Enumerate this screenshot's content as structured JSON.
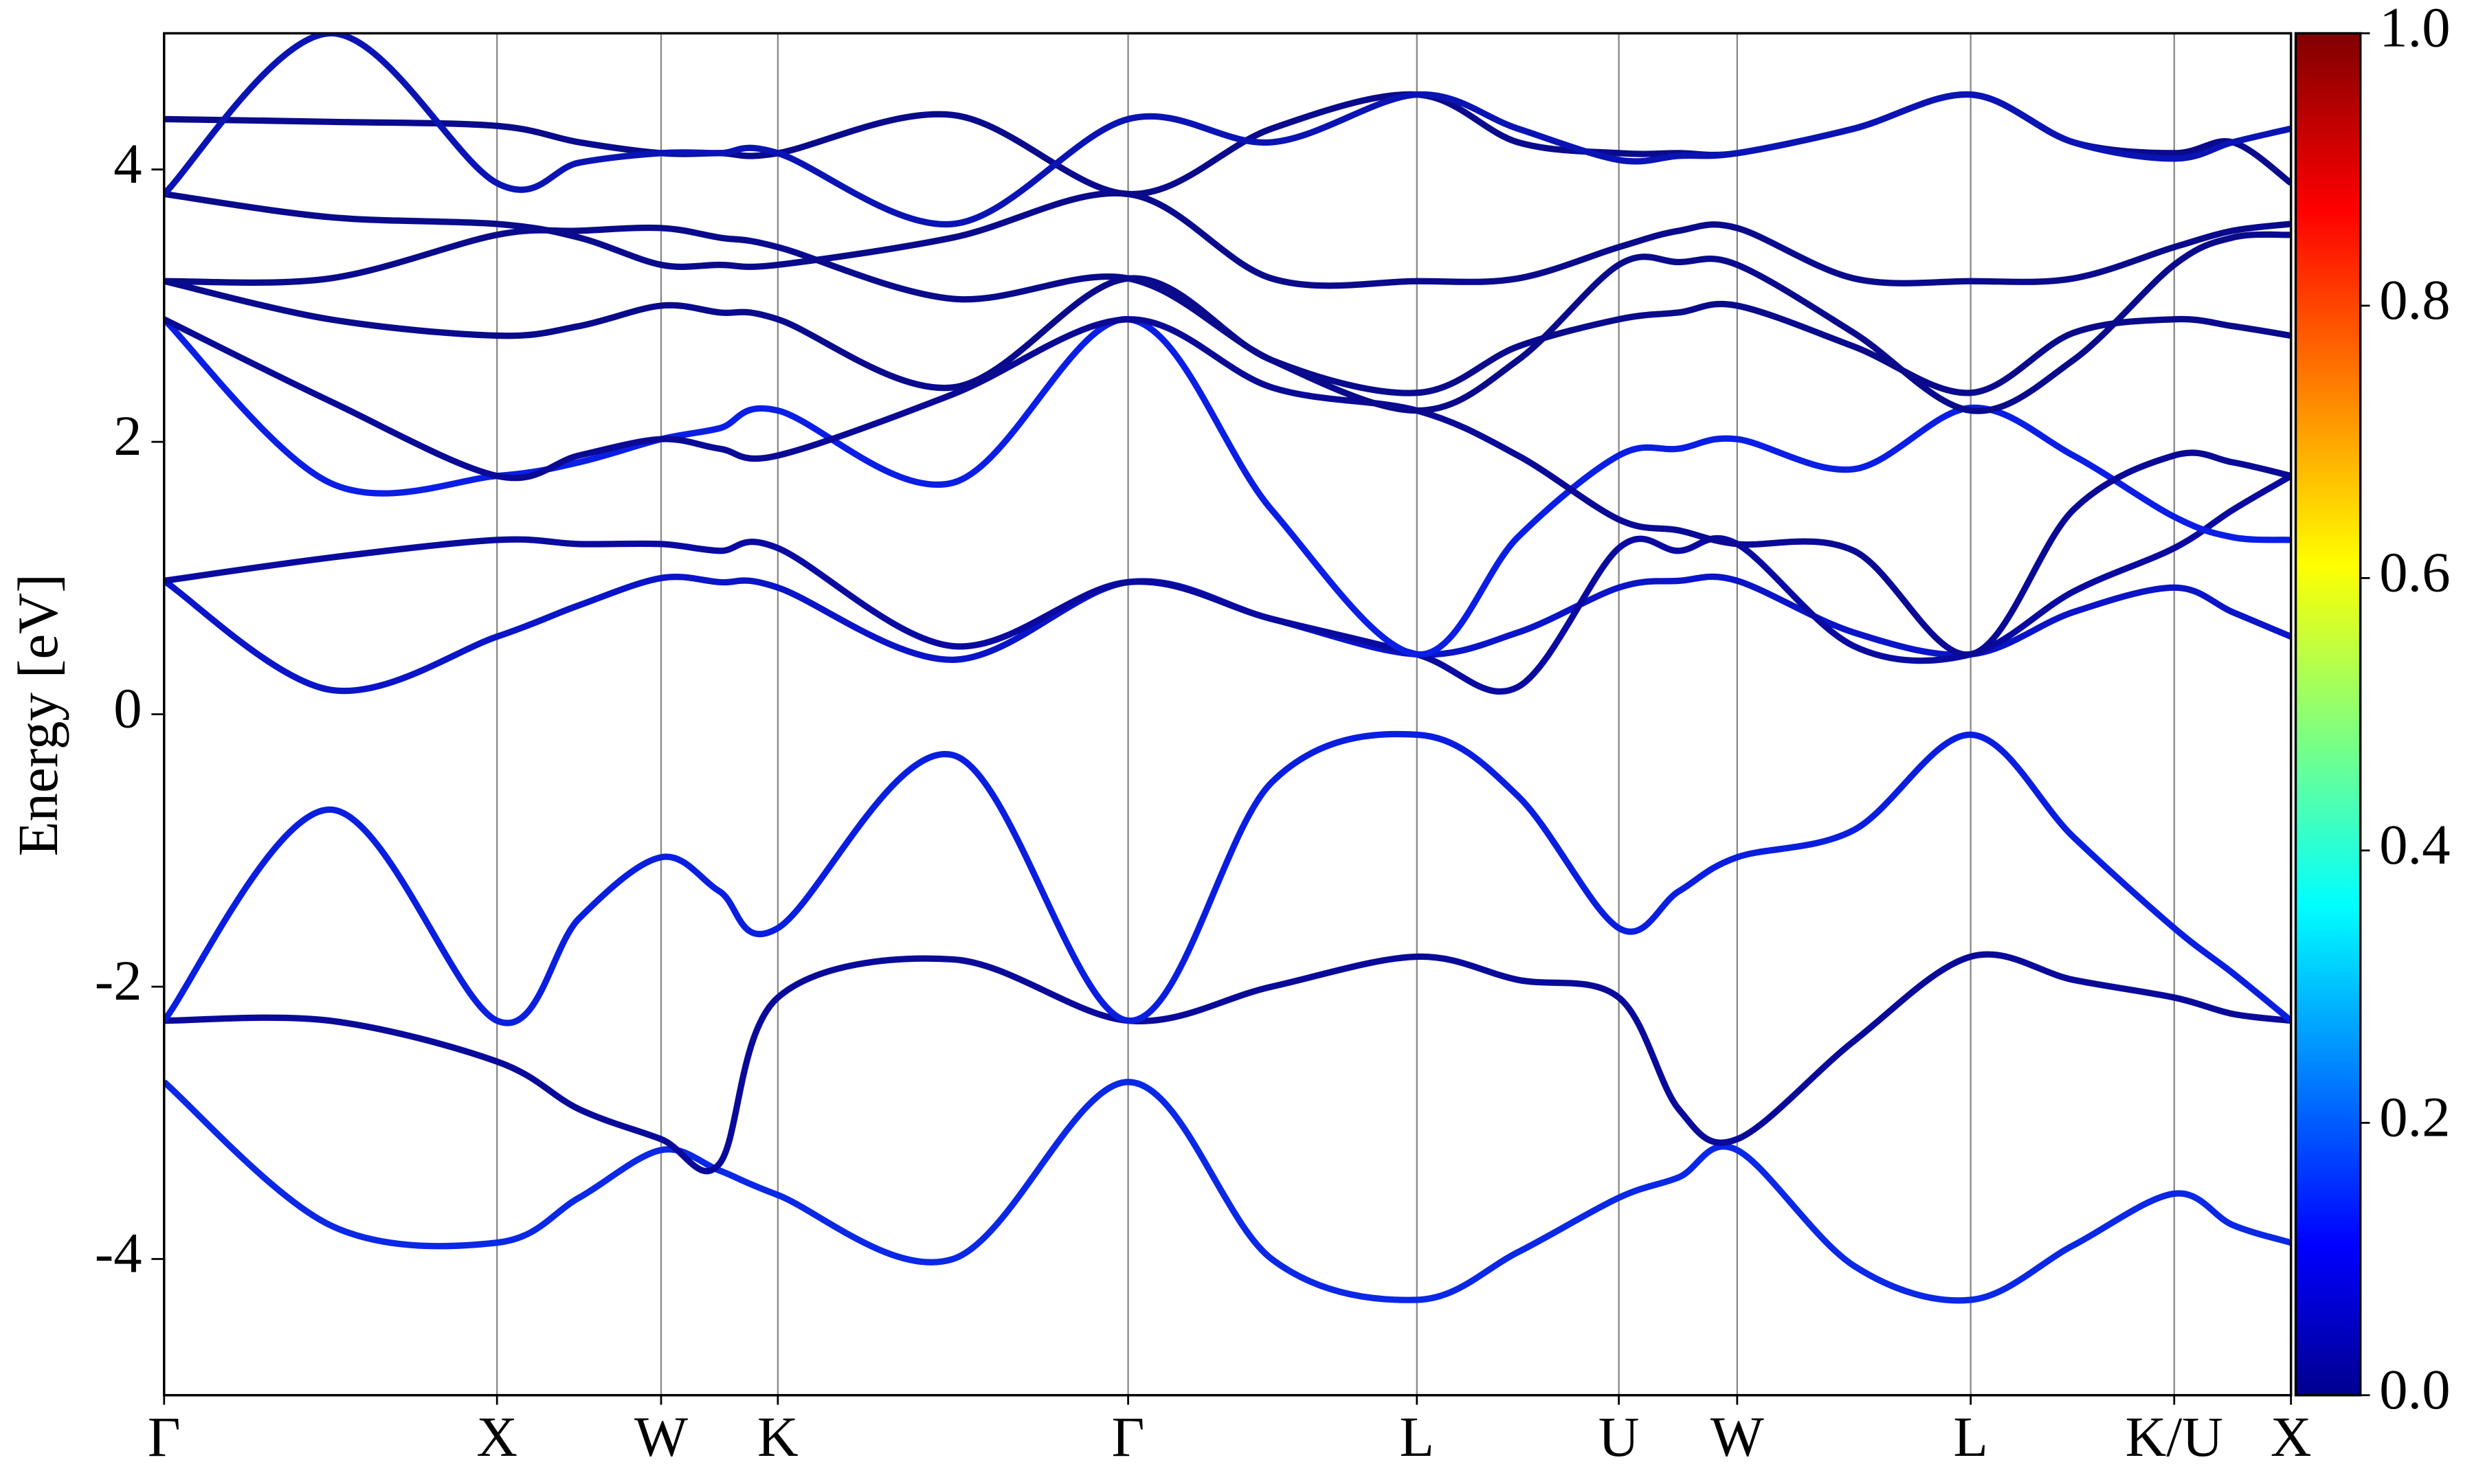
{
  "chart_data": {
    "type": "line",
    "y_label": "Energy [eV]",
    "xlim": [
      0,
      13.48
    ],
    "xticks": [
      {
        "value": 0,
        "label": "Γ"
      },
      {
        "value": 2.11,
        "label": "X"
      },
      {
        "value": 3.15,
        "label": "W"
      },
      {
        "value": 3.89,
        "label": "K"
      },
      {
        "value": 6.11,
        "label": "Γ"
      },
      {
        "value": 7.94,
        "label": "L"
      },
      {
        "value": 9.22,
        "label": "U"
      },
      {
        "value": 9.97,
        "label": "W"
      },
      {
        "value": 11.45,
        "label": "L"
      },
      {
        "value": 12.74,
        "label": "K/U"
      },
      {
        "value": 13.48,
        "label": "X"
      }
    ],
    "ylim": [
      -5,
      5
    ],
    "yticks": [
      -4,
      -2,
      0,
      2,
      4
    ],
    "x": [
      0,
      1.05,
      2.11,
      2.63,
      3.15,
      3.52,
      3.89,
      5.0,
      6.11,
      7.02,
      7.94,
      8.58,
      9.22,
      9.6,
      9.97,
      10.71,
      11.45,
      12.1,
      12.74,
      13.11,
      13.48
    ],
    "series": [
      {
        "color": "#0a28e6",
        "values": [
          -2.7,
          -3.75,
          -3.88,
          -3.55,
          -3.2,
          -3.35,
          -3.53,
          -4.0,
          -2.7,
          -4.0,
          -4.3,
          -3.95,
          -3.55,
          -3.4,
          -3.2,
          -4.05,
          -4.3,
          -3.9,
          -3.52,
          -3.75,
          -3.88
        ]
      },
      {
        "color": "#0a0a9a",
        "values": [
          -2.25,
          -2.25,
          -2.55,
          -2.9,
          -3.12,
          -3.3,
          -2.08,
          -1.8,
          -2.25,
          -2.0,
          -1.78,
          -1.95,
          -2.08,
          -2.9,
          -3.12,
          -2.4,
          -1.78,
          -1.95,
          -2.08,
          -2.2,
          -2.25
        ]
      },
      {
        "color": "#0a1ee0",
        "values": [
          -2.25,
          -0.7,
          -2.25,
          -1.5,
          -1.05,
          -1.3,
          -1.57,
          -0.3,
          -2.25,
          -0.5,
          -0.15,
          -0.6,
          -1.57,
          -1.3,
          -1.05,
          -0.85,
          -0.15,
          -0.9,
          -1.57,
          -1.9,
          -2.25
        ]
      },
      {
        "color": "#0a14c8",
        "values": [
          0.98,
          0.18,
          0.57,
          0.8,
          1.0,
          0.97,
          0.93,
          0.4,
          0.97,
          0.7,
          0.44,
          0.6,
          0.93,
          0.98,
          0.98,
          0.6,
          0.44,
          0.75,
          0.93,
          0.75,
          0.57
        ]
      },
      {
        "color": "#0a0aa0",
        "values": [
          0.98,
          1.15,
          1.28,
          1.25,
          1.25,
          1.2,
          1.22,
          0.5,
          0.97,
          0.7,
          0.44,
          0.2,
          1.22,
          1.2,
          1.25,
          0.5,
          0.44,
          0.9,
          1.22,
          1.5,
          1.75
        ]
      },
      {
        "color": "#0a1ee6",
        "values": [
          2.9,
          1.7,
          1.75,
          1.85,
          2.02,
          2.1,
          2.23,
          1.7,
          2.9,
          1.5,
          0.44,
          1.3,
          1.9,
          1.95,
          2.02,
          1.8,
          2.25,
          1.9,
          1.45,
          1.3,
          1.28
        ]
      },
      {
        "color": "#0a0a96",
        "values": [
          2.9,
          2.3,
          1.75,
          1.9,
          2.02,
          1.95,
          1.9,
          2.35,
          2.9,
          2.4,
          2.23,
          1.9,
          1.43,
          1.35,
          1.25,
          1.2,
          0.44,
          1.5,
          1.9,
          1.85,
          1.75
        ]
      },
      {
        "color": "#0a0a8c",
        "values": [
          3.18,
          2.9,
          2.78,
          2.85,
          3.0,
          2.95,
          2.9,
          2.4,
          3.2,
          2.6,
          2.36,
          2.7,
          2.9,
          2.95,
          3.0,
          2.7,
          2.36,
          2.8,
          2.9,
          2.85,
          2.78
        ]
      },
      {
        "color": "#0a0a8c",
        "values": [
          3.18,
          3.2,
          3.52,
          3.55,
          3.57,
          3.5,
          3.43,
          3.05,
          3.2,
          2.6,
          2.23,
          2.6,
          3.3,
          3.32,
          3.3,
          2.8,
          2.23,
          2.6,
          3.3,
          3.5,
          3.52
        ]
      },
      {
        "color": "#0a0a8c",
        "values": [
          3.82,
          3.65,
          3.6,
          3.5,
          3.3,
          3.3,
          3.3,
          3.5,
          3.82,
          3.2,
          3.18,
          3.2,
          3.43,
          3.55,
          3.57,
          3.2,
          3.18,
          3.2,
          3.43,
          3.55,
          3.6
        ]
      },
      {
        "color": "#0a0a8c",
        "values": [
          4.37,
          4.35,
          4.32,
          4.2,
          4.12,
          4.12,
          4.12,
          4.4,
          3.82,
          4.3,
          4.55,
          4.2,
          4.12,
          4.12,
          4.12,
          4.3,
          4.55,
          4.2,
          4.12,
          4.2,
          3.9
        ]
      },
      {
        "color": "#0a14b4",
        "values": [
          3.82,
          5.0,
          3.9,
          4.05,
          4.12,
          4.12,
          4.12,
          3.6,
          4.37,
          4.2,
          4.55,
          4.3,
          4.07,
          4.1,
          4.12,
          4.3,
          4.55,
          4.2,
          4.08,
          4.2,
          4.3
        ]
      }
    ],
    "colorbar": {
      "lim": [
        0,
        1
      ],
      "ticks": [
        {
          "value": 0,
          "label": "0.0"
        },
        {
          "value": 0.2,
          "label": "0.2"
        },
        {
          "value": 0.4,
          "label": "0.4"
        },
        {
          "value": 0.6,
          "label": "0.6"
        },
        {
          "value": 0.8,
          "label": "0.8"
        },
        {
          "value": 1,
          "label": "1.0"
        }
      ]
    }
  }
}
